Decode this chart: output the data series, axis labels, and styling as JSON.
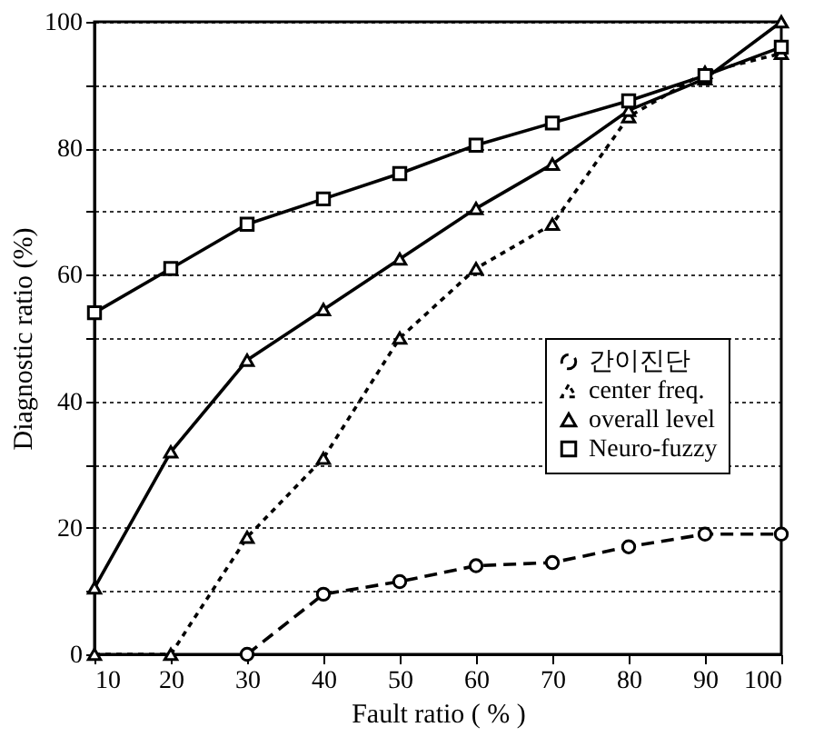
{
  "chart_data": {
    "type": "line",
    "xlabel": "Fault ratio ( % )",
    "ylabel": "Diagnostic ratio (%)",
    "x": [
      10,
      20,
      30,
      40,
      50,
      60,
      70,
      80,
      90,
      100
    ],
    "series": [
      {
        "name": "간이진단",
        "color": "#000000",
        "marker": "circle",
        "line_style": "dashed",
        "values": [
          null,
          null,
          0,
          9.5,
          11.5,
          14,
          14.5,
          17,
          19,
          19
        ]
      },
      {
        "name": "center freq.",
        "color": "#000000",
        "marker": "triangle",
        "line_style": "dotted",
        "values": [
          0,
          0,
          18.5,
          31,
          50,
          61,
          68,
          85,
          92,
          95
        ]
      },
      {
        "name": "overall level",
        "color": "#000000",
        "marker": "triangle",
        "line_style": "solid",
        "values": [
          10.5,
          32,
          46.5,
          54.5,
          62.5,
          70.5,
          77.5,
          86,
          91,
          100
        ]
      },
      {
        "name": "Neuro-fuzzy",
        "color": "#000000",
        "marker": "square",
        "line_style": "solid",
        "values": [
          54,
          61,
          68,
          72,
          76,
          80.5,
          84,
          87.5,
          91.5,
          96
        ]
      }
    ],
    "xlim": [
      10,
      100
    ],
    "xticks": [
      10,
      20,
      30,
      40,
      50,
      60,
      70,
      80,
      90,
      100
    ],
    "ylim": [
      0,
      100
    ],
    "yticks": [
      0,
      {
        "value": 10,
        "label": null
      },
      20,
      {
        "value": 30,
        "label": null
      },
      40,
      {
        "value": 50,
        "label": null
      },
      60,
      {
        "value": 70,
        "label": null
      },
      80,
      {
        "value": 90,
        "label": null
      },
      100
    ],
    "grid": "y",
    "legend": "right"
  }
}
